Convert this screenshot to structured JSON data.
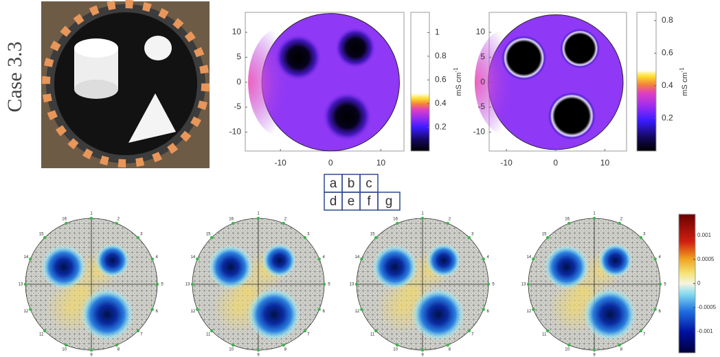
{
  "figure_label": "Case 3.3",
  "maps": [
    {
      "xlim": [
        -17,
        14.6
      ],
      "ylim": [
        -13.8,
        14
      ],
      "xticks": [
        -10,
        0,
        10
      ],
      "yticks": [
        10,
        5,
        0,
        -5,
        -10
      ],
      "colorbar": {
        "lim": [
          0,
          1.17
        ],
        "ticks": [
          1,
          0.8,
          0.6,
          0.4,
          0.2
        ],
        "unit": "mS cm",
        "unit_exponent": "-1"
      }
    },
    {
      "xlim": [
        -13.5,
        14.4
      ],
      "ylim": [
        -13.8,
        14
      ],
      "xticks": [
        -10,
        0,
        10
      ],
      "yticks": [
        10,
        5,
        0,
        -5,
        -10
      ],
      "colorbar": {
        "lim": [
          0,
          0.85
        ],
        "ticks": [
          0.8,
          0.6,
          0.4,
          0.2
        ],
        "unit": "mS cm",
        "unit_exponent": "-1"
      }
    }
  ],
  "legend_grid": {
    "rows": [
      [
        "a",
        "b",
        "c"
      ],
      [
        "d",
        "e",
        "f",
        "g"
      ]
    ]
  },
  "electrode_labels": [
    "1",
    "2",
    "3",
    "4",
    "5",
    "6",
    "7",
    "8",
    "9",
    "10",
    "11",
    "12",
    "13",
    "14",
    "15",
    "16"
  ],
  "bottom_colorbar": {
    "lim": [
      -0.00144,
      0.00144
    ],
    "ticks": [
      0.001,
      0.0005,
      0,
      -0.0005,
      -0.001
    ]
  }
}
